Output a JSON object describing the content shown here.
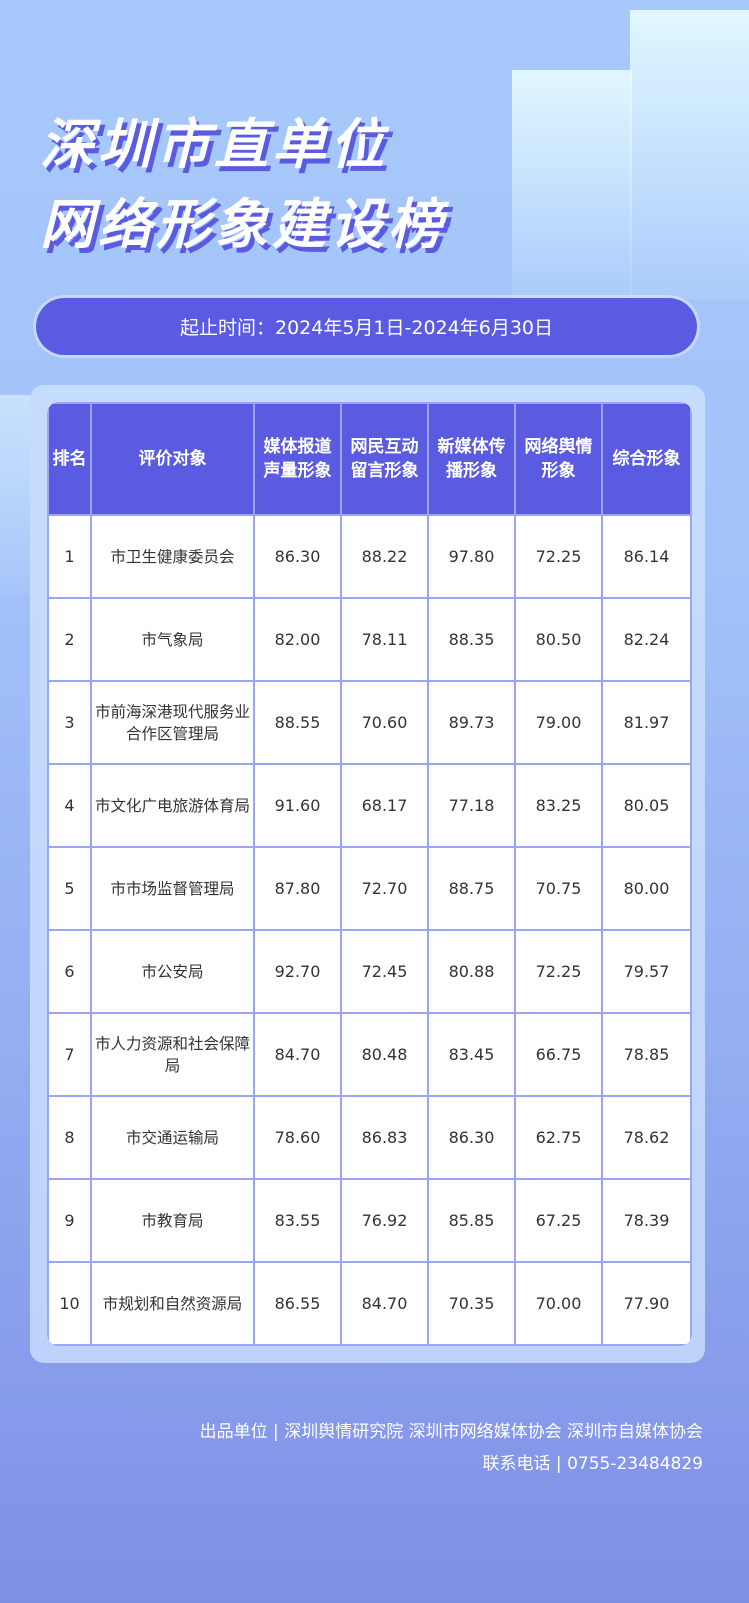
{
  "title": {
    "line1": "深圳市直单位",
    "line2": "网络形象建设榜"
  },
  "period": "起止时间：2024年5月1日-2024年6月30日",
  "table": {
    "headers": [
      "排名",
      "评价对象",
      "媒体报道声量形象",
      "网民互动留言形象",
      "新媒体传播形象",
      "网络舆情形象",
      "综合形象"
    ],
    "rows": [
      [
        "1",
        "市卫生健康委员会",
        "86.30",
        "88.22",
        "97.80",
        "72.25",
        "86.14"
      ],
      [
        "2",
        "市气象局",
        "82.00",
        "78.11",
        "88.35",
        "80.50",
        "82.24"
      ],
      [
        "3",
        "市前海深港现代服务业合作区管理局",
        "88.55",
        "70.60",
        "89.73",
        "79.00",
        "81.97"
      ],
      [
        "4",
        "市文化广电旅游体育局",
        "91.60",
        "68.17",
        "77.18",
        "83.25",
        "80.05"
      ],
      [
        "5",
        "市市场监督管理局",
        "87.80",
        "72.70",
        "88.75",
        "70.75",
        "80.00"
      ],
      [
        "6",
        "市公安局",
        "92.70",
        "72.45",
        "80.88",
        "72.25",
        "79.57"
      ],
      [
        "7",
        "市人力资源和社会保障局",
        "84.70",
        "80.48",
        "83.45",
        "66.75",
        "78.85"
      ],
      [
        "8",
        "市交通运输局",
        "78.60",
        "86.83",
        "86.30",
        "62.75",
        "78.62"
      ],
      [
        "9",
        "市教育局",
        "83.55",
        "76.92",
        "85.85",
        "67.25",
        "78.39"
      ],
      [
        "10",
        "市规划和自然资源局",
        "86.55",
        "84.70",
        "70.35",
        "70.00",
        "77.90"
      ]
    ]
  },
  "footer": {
    "producer": "出品单位 | 深圳舆情研究院 深圳市网络媒体协会 深圳市自媒体协会",
    "phone": "联系电话 | 0755-23484829"
  },
  "colors": {
    "accent": "#5a5be0",
    "grid": "#9aa6f5"
  }
}
